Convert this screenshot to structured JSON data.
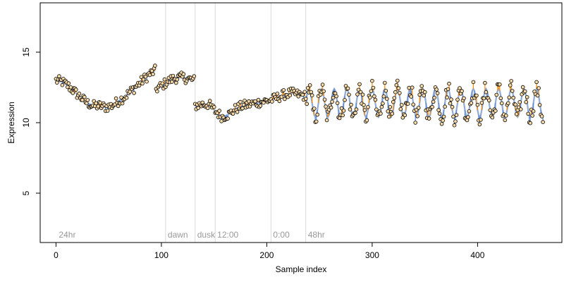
{
  "chart_data": {
    "type": "scatter",
    "xlabel": "Sample index",
    "ylabel": "Expression",
    "xlim": [
      -15,
      480
    ],
    "ylim": [
      1.5,
      18.5
    ],
    "x_ticks": [
      0,
      100,
      200,
      300,
      400
    ],
    "y_ticks": [
      5,
      10,
      15
    ],
    "grid": false,
    "section_markers": [
      {
        "label": "24hr",
        "x": 0
      },
      {
        "label": "dawn",
        "x": 104
      },
      {
        "label": "dusk",
        "x": 132
      },
      {
        "label": "12:00",
        "x": 151
      },
      {
        "label": "0:00",
        "x": 204
      },
      {
        "label": "48hr",
        "x": 237
      }
    ],
    "segments": [
      {
        "x_start": 0,
        "x_end": 94,
        "description": "smooth dip and rise",
        "y_values": [
          13.0,
          12.9,
          12.6,
          12.2,
          11.8,
          11.4,
          11.2,
          11.2,
          11.1,
          11.2,
          11.5,
          11.8,
          12.2,
          12.6,
          13.0,
          13.4,
          13.7
        ]
      },
      {
        "x_start": 95,
        "x_end": 131,
        "description": "plateau",
        "y_values": [
          12.4,
          12.6,
          12.9,
          13.1,
          13.2,
          13.2,
          13.1,
          13.0
        ]
      },
      {
        "x_start": 132,
        "x_end": 203,
        "description": "drop and wiggle",
        "y_values": [
          11.2,
          11.3,
          11.3,
          10.8,
          10.4,
          10.6,
          11.0,
          11.2,
          11.3,
          11.4,
          11.5,
          11.6
        ]
      },
      {
        "x_start": 204,
        "x_end": 236,
        "description": "rise",
        "y_values": [
          11.6,
          11.8,
          12.0,
          12.1,
          12.0,
          11.9
        ]
      },
      {
        "x_start": 237,
        "x_end": 462,
        "description": "oscillation period ~12 samples",
        "y_center": 11.4,
        "y_amplitude": 1.0,
        "period": 12
      }
    ],
    "colors": {
      "fit_line": "#6e8fc7",
      "marker_fill": "#f5d9a8",
      "marker_edge": "#000000",
      "residual_up": "#ff8c00",
      "residual_down": "#5b87d6",
      "marker_lines": "#d9d9d9",
      "section_text": "#999999",
      "axis": "#000000"
    }
  }
}
